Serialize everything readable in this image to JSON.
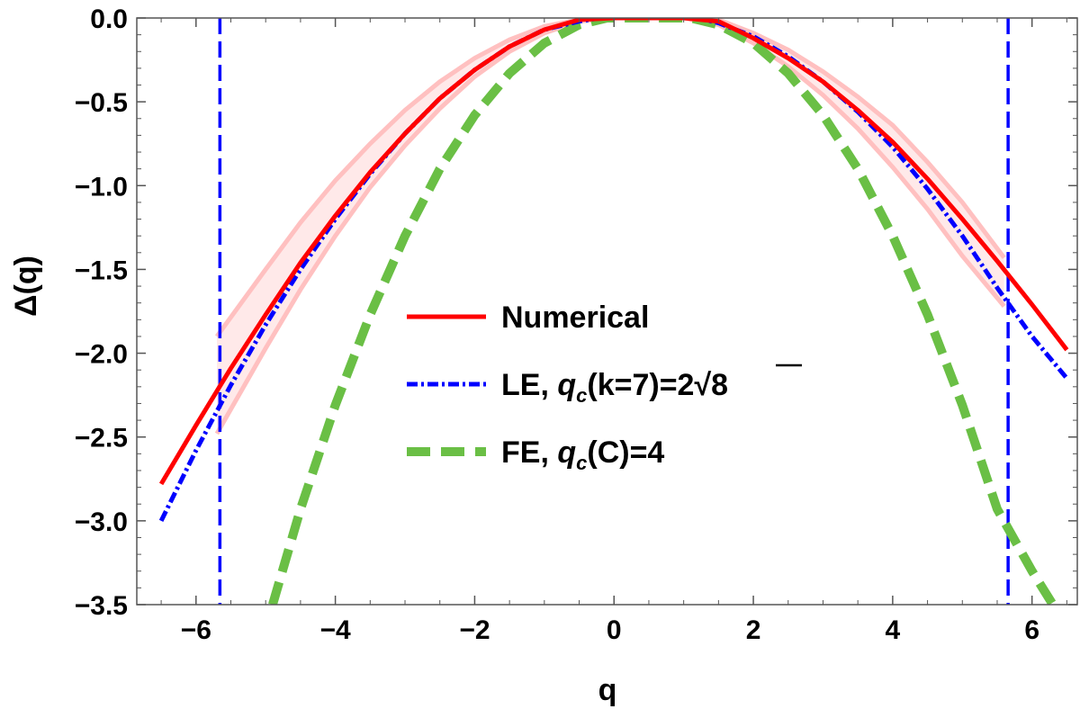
{
  "chart_data": {
    "type": "line",
    "xlabel": "q",
    "ylabel": "Δ(q)",
    "xlim": [
      -6.85,
      6.65
    ],
    "ylim": [
      -3.5,
      0.0
    ],
    "x_ticks": [
      -6,
      -4,
      -2,
      0,
      2,
      4,
      6
    ],
    "x_tick_labels": [
      "−6",
      "−4",
      "−2",
      "0",
      "2",
      "4",
      "6"
    ],
    "y_ticks": [
      0.0,
      -0.5,
      -1.0,
      -1.5,
      -2.0,
      -2.5,
      -3.0,
      -3.5
    ],
    "y_tick_labels": [
      "0.0",
      "−0.5",
      "−1.0",
      "−1.5",
      "−2.0",
      "−2.5",
      "−3.0",
      "−3.5"
    ],
    "grid": false,
    "legend_position": "center",
    "series": [
      {
        "name": "Numerical",
        "color": "#ff0000",
        "style": "solid",
        "x": [
          -6.5,
          -6.0,
          -5.5,
          -5.0,
          -4.5,
          -4.0,
          -3.5,
          -3.0,
          -2.5,
          -2.0,
          -1.5,
          -1.0,
          -0.5,
          0.0,
          0.5,
          1.0,
          1.5,
          2.0,
          2.5,
          3.0,
          3.5,
          4.0,
          4.5,
          5.0,
          5.5,
          6.0,
          6.5
        ],
        "y": [
          -2.78,
          -2.43,
          -2.09,
          -1.77,
          -1.46,
          -1.18,
          -0.92,
          -0.69,
          -0.48,
          -0.31,
          -0.17,
          -0.07,
          -0.01,
          0.0,
          0.0,
          0.0,
          -0.02,
          -0.12,
          -0.24,
          -0.38,
          -0.55,
          -0.74,
          -0.96,
          -1.2,
          -1.45,
          -1.71,
          -1.98
        ]
      },
      {
        "name": "LE",
        "legend_parts": [
          "LE, ",
          "q",
          "c",
          "(k=7)=2",
          "√",
          "8"
        ],
        "color": "#0000ff",
        "style": "dash-dot",
        "x": [
          -6.5,
          -6.0,
          -5.5,
          -5.0,
          -4.5,
          -4.0,
          -3.5,
          -3.0,
          -2.5,
          -2.0,
          -1.5,
          -1.0,
          -0.5,
          -0.2,
          1.2,
          1.5,
          2.0,
          2.5,
          3.0,
          3.5,
          4.0,
          4.5,
          5.0,
          5.5,
          6.0,
          6.5
        ],
        "y": [
          -3.0,
          -2.58,
          -2.19,
          -1.83,
          -1.5,
          -1.2,
          -0.93,
          -0.69,
          -0.48,
          -0.31,
          -0.17,
          -0.07,
          -0.02,
          0.0,
          0.0,
          -0.03,
          -0.11,
          -0.23,
          -0.38,
          -0.56,
          -0.77,
          -1.02,
          -1.3,
          -1.61,
          -1.9,
          -2.15
        ]
      },
      {
        "name": "FE",
        "legend_parts": [
          "FE, ",
          "q",
          "c",
          "(C)=4"
        ],
        "color": "#6abf45",
        "style": "dashed",
        "x": [
          -4.9,
          -4.5,
          -4.0,
          -3.5,
          -3.0,
          -2.5,
          -2.0,
          -1.5,
          -1.0,
          -0.5,
          -0.1,
          1.1,
          1.5,
          2.0,
          2.5,
          3.0,
          3.5,
          4.0,
          4.5,
          5.0,
          5.5,
          6.0,
          6.3
        ],
        "y": [
          -3.5,
          -2.93,
          -2.31,
          -1.77,
          -1.3,
          -0.9,
          -0.58,
          -0.33,
          -0.15,
          -0.04,
          0.0,
          0.0,
          -0.04,
          -0.15,
          -0.33,
          -0.58,
          -0.9,
          -1.3,
          -1.77,
          -2.31,
          -2.93,
          -3.3,
          -3.5
        ]
      }
    ],
    "band": {
      "color": "#ffc0c0",
      "x": [
        -5.7,
        -5.0,
        -4.5,
        -4.0,
        -3.5,
        -3.0,
        -2.5,
        -2.0,
        -1.5,
        -1.0,
        -0.5,
        0.0,
        1.0,
        1.5,
        2.0,
        2.5,
        3.0,
        3.5,
        4.0,
        4.5,
        5.0,
        5.6
      ],
      "upper": [
        -1.9,
        -1.5,
        -1.22,
        -0.97,
        -0.75,
        -0.55,
        -0.38,
        -0.24,
        -0.13,
        -0.05,
        -0.01,
        0.0,
        0.0,
        -0.01,
        -0.09,
        -0.19,
        -0.32,
        -0.47,
        -0.64,
        -0.86,
        -1.1,
        -1.43
      ],
      "lower": [
        -2.48,
        -1.97,
        -1.62,
        -1.3,
        -1.01,
        -0.76,
        -0.54,
        -0.35,
        -0.2,
        -0.09,
        -0.02,
        0.0,
        0.0,
        -0.04,
        -0.15,
        -0.29,
        -0.46,
        -0.66,
        -0.89,
        -1.14,
        -1.42,
        -1.72
      ]
    },
    "vertical_lines": [
      {
        "x": -5.657,
        "color": "#0000ff",
        "style": "dashed"
      },
      {
        "x": 5.657,
        "color": "#0000ff",
        "style": "dashed"
      }
    ]
  }
}
